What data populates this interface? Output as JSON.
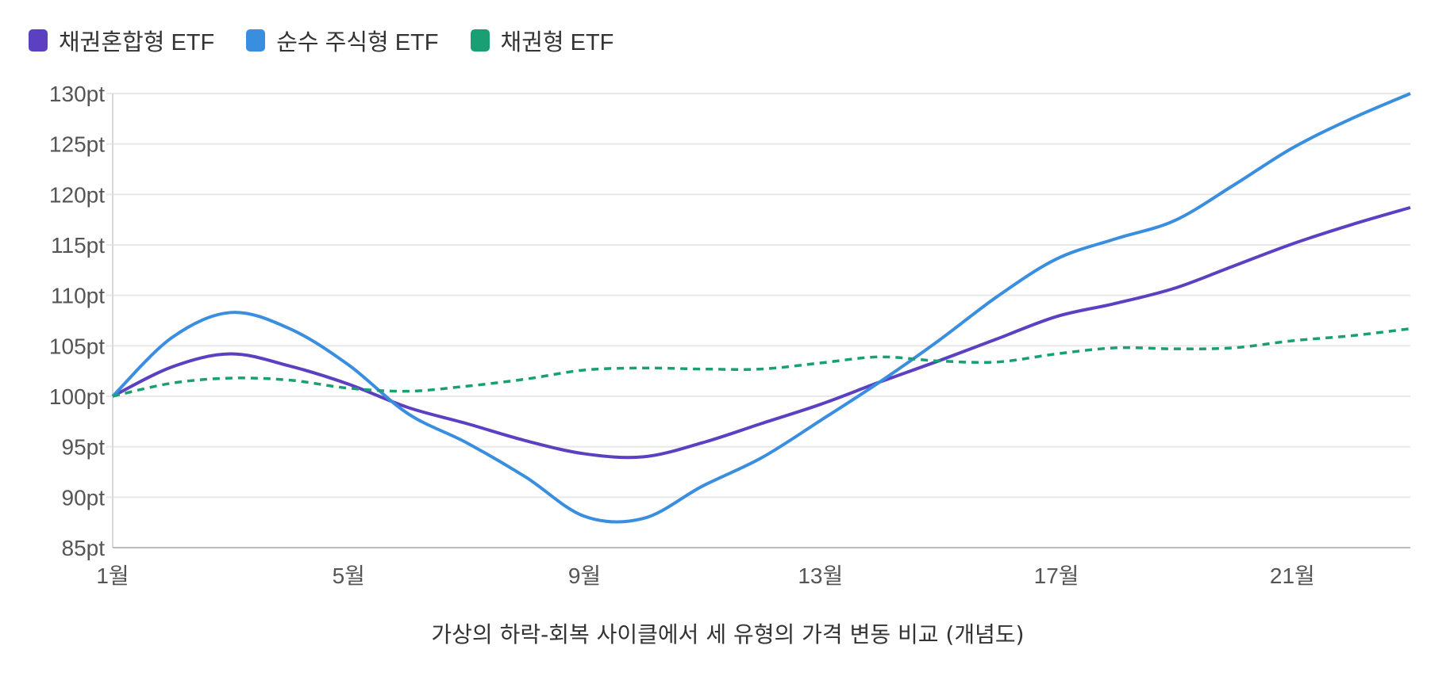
{
  "chart_data": {
    "type": "line",
    "title": "",
    "xlabel": "가상의 하락-회복 사이클에서 세 유형의 가격 변동 비교 (개념도)",
    "ylabel": "",
    "x": [
      1,
      2,
      3,
      4,
      5,
      6,
      7,
      8,
      9,
      10,
      11,
      12,
      13,
      14,
      15,
      16,
      17,
      18,
      19,
      20,
      21,
      22,
      23
    ],
    "x_tick_values": [
      1,
      5,
      9,
      13,
      17,
      21
    ],
    "x_tick_labels": [
      "1월",
      "5월",
      "9월",
      "13월",
      "17월",
      "21월"
    ],
    "y_tick_values": [
      85,
      90,
      95,
      100,
      105,
      110,
      115,
      120,
      125,
      130
    ],
    "y_tick_labels": [
      "85pt",
      "90pt",
      "95pt",
      "100pt",
      "105pt",
      "110pt",
      "115pt",
      "120pt",
      "125pt",
      "130pt"
    ],
    "ylim": [
      85,
      130
    ],
    "grid": true,
    "legend_position": "top-left",
    "series": [
      {
        "name": "채권혼합형 ETF",
        "color": "#5b41c1",
        "dashed": false,
        "values": [
          100,
          102.9,
          104.2,
          103,
          101.2,
          98.9,
          97.3,
          95.6,
          94.3,
          94,
          95.4,
          97.3,
          99.2,
          101.4,
          103.5,
          105.7,
          107.9,
          109.2,
          110.7,
          112.9,
          115.1,
          117,
          118.7
        ]
      },
      {
        "name": "순수 주식형 ETF",
        "color": "#3a8ee0",
        "dashed": false,
        "values": [
          100,
          105.8,
          108.3,
          106.7,
          103.1,
          98.3,
          95.4,
          92,
          88.1,
          87.9,
          91.1,
          93.9,
          97.6,
          101.4,
          105.5,
          109.9,
          113.6,
          115.6,
          117.4,
          120.9,
          124.6,
          127.5,
          130
        ]
      },
      {
        "name": "채권형 ETF",
        "color": "#1a9e74",
        "dashed": true,
        "values": [
          100,
          101.3,
          101.8,
          101.6,
          100.8,
          100.5,
          101,
          101.7,
          102.6,
          102.8,
          102.7,
          102.7,
          103.3,
          103.9,
          103.5,
          103.4,
          104.2,
          104.8,
          104.7,
          104.8,
          105.5,
          106,
          106.7
        ]
      }
    ]
  }
}
